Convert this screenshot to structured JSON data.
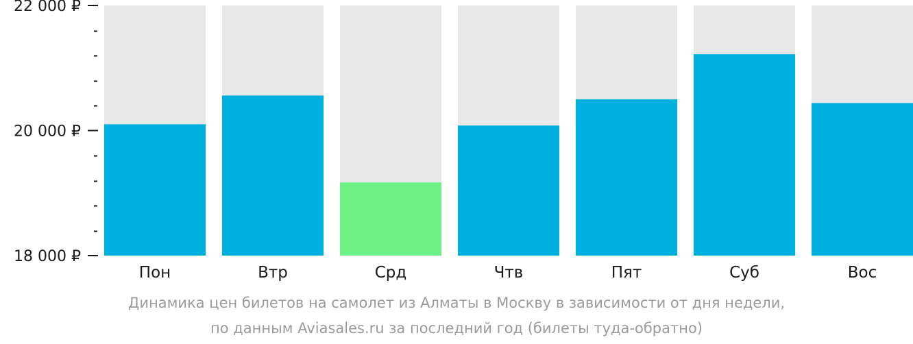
{
  "chart_data": {
    "type": "bar",
    "categories": [
      "Пон",
      "Втр",
      "Срд",
      "Чтв",
      "Пят",
      "Суб",
      "Вос"
    ],
    "values": [
      20100,
      20560,
      19170,
      20080,
      20500,
      21220,
      20440
    ],
    "ylim": [
      18000,
      22000
    ],
    "y_ticks": [
      {
        "value": 22000,
        "label": "22 000 ₽"
      },
      {
        "value": 20000,
        "label": "20 000 ₽"
      },
      {
        "value": 18000,
        "label": "18 000 ₽"
      }
    ],
    "minor_tick_step": 400,
    "highlight_index": 2,
    "colors": {
      "bar": "#00b0dc",
      "highlight": "#6ef086",
      "background_bar": "#e8e8e8",
      "axis": "#1a1a1a"
    },
    "caption": [
      "Динамика цен билетов на самолет из Алматы в Москву в зависимости от дня недели,",
      "по данным Aviasales.ru за последний год (билеты туда-обратно)"
    ]
  }
}
